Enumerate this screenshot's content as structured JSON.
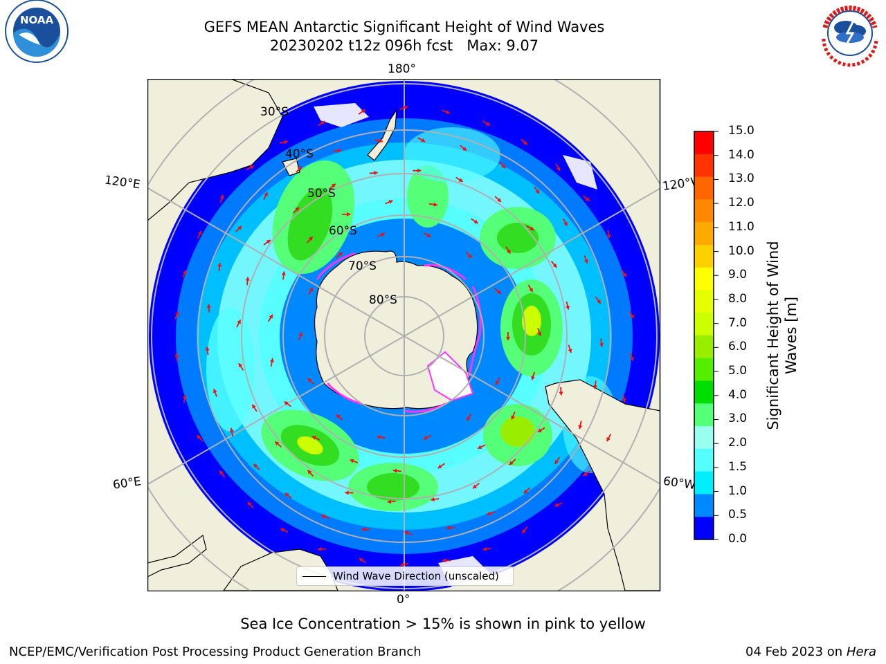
{
  "title": {
    "line1": "GEFS MEAN Antarctic Significant Height of Wind Waves",
    "line2": "20230202 t12z 096h fcst   Max: 9.07"
  },
  "logos": {
    "left": "NOAA",
    "right_icon": "national-weather-service-logo"
  },
  "map": {
    "projection": "south-polar-stereographic",
    "lat_labels": [
      "30°S",
      "40°S",
      "50°S",
      "60°S",
      "70°S",
      "80°S"
    ],
    "lon_labels": {
      "top": "180°",
      "left_top": "120°E",
      "right_top": "120°W",
      "left_bottom": "60°E",
      "right_bottom": "60°W",
      "bottom": "0°"
    }
  },
  "legend": {
    "label": "Wind Wave Direction (unscaled)"
  },
  "colorbar": {
    "label": "Significant Height of Wind Waves [m]",
    "label_line1": "Significant Height of Wind",
    "label_line2": "Waves [m]",
    "ticks": [
      "15.0",
      "14.0",
      "13.0",
      "12.0",
      "11.0",
      "10.0",
      "9.0",
      "8.0",
      "7.0",
      "6.0",
      "5.0",
      "4.0",
      "3.0",
      "2.0",
      "1.5",
      "1.0",
      "0.5",
      "0.0"
    ],
    "bin_colors_top_to_bottom": [
      "#ff0000",
      "#ff3300",
      "#ff6600",
      "#ff8800",
      "#ffaa00",
      "#ffd000",
      "#ffff00",
      "#e6ff00",
      "#ccff00",
      "#99ee00",
      "#55ee00",
      "#00dd00",
      "#55ff77",
      "#99ffee",
      "#55ffff",
      "#00eeff",
      "#0088ff",
      "#0000ff"
    ]
  },
  "caption": "Sea Ice Concentration > 15% is shown in pink to yellow",
  "footer": {
    "credit": "NCEP/EMC/Verification Post Processing Product Generation Branch",
    "date": "04 Feb 2023 on",
    "host": "Hera"
  }
}
